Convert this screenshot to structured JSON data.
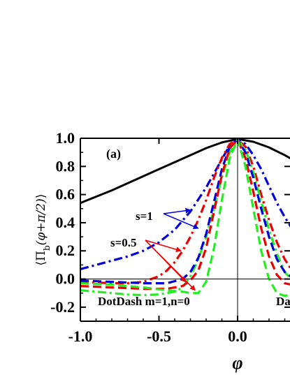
{
  "chart_data": {
    "type": "line",
    "title": "",
    "panel_label": "(a)",
    "xlabel": "φ",
    "ylabel": "⟨Π_b(φ+π/2)⟩",
    "ylabel_parts": {
      "open": "⟨",
      "pi": "Π",
      "sub": "b",
      "args": "(φ+π/2)",
      "close": "⟩"
    },
    "xlim": [
      -1.0,
      0.38
    ],
    "ylim": [
      -0.3,
      1.0
    ],
    "x_ticks": [
      "-1.0",
      "-0.5",
      "0.0"
    ],
    "y_ticks": [
      "1.0",
      "0.8",
      "0.6",
      "0.4",
      "0.2",
      "0.0",
      "-0.2"
    ],
    "grid": false,
    "annotations": {
      "s1": "s=1",
      "s05": "s=0.5",
      "dotdash": "DotDash  m=1,n=0",
      "dash": "Da"
    },
    "colors": {
      "black": "#000000",
      "blue": "#0000dd",
      "red": "#ee0000",
      "green": "#22ee22"
    },
    "series": [
      {
        "color": "black",
        "style": "solid",
        "x": [
          -1.0,
          -0.9,
          -0.8,
          -0.7,
          -0.6,
          -0.5,
          -0.4,
          -0.3,
          -0.2,
          -0.1,
          0.0,
          0.1,
          0.2,
          0.3,
          0.38
        ],
        "y": [
          0.54,
          0.585,
          0.63,
          0.68,
          0.73,
          0.78,
          0.83,
          0.88,
          0.93,
          0.97,
          0.995,
          0.975,
          0.935,
          0.88,
          0.83
        ]
      },
      {
        "color": "blue",
        "style": "dashdot",
        "x": [
          -1.0,
          -0.9,
          -0.8,
          -0.7,
          -0.6,
          -0.5,
          -0.4,
          -0.3,
          -0.2,
          -0.1,
          -0.05,
          0.0,
          0.05,
          0.1,
          0.15,
          0.2,
          0.25,
          0.3,
          0.38
        ],
        "y": [
          0.07,
          0.1,
          0.13,
          0.16,
          0.2,
          0.26,
          0.35,
          0.48,
          0.65,
          0.85,
          0.95,
          0.99,
          0.96,
          0.88,
          0.78,
          0.66,
          0.54,
          0.44,
          0.3
        ]
      },
      {
        "color": "red",
        "style": "dashdot",
        "x": [
          -1.0,
          -0.9,
          -0.8,
          -0.7,
          -0.6,
          -0.5,
          -0.45,
          -0.4,
          -0.35,
          -0.3,
          -0.25,
          -0.2,
          -0.15,
          -0.1,
          -0.05,
          0.0,
          0.05,
          0.1,
          0.15,
          0.2,
          0.25,
          0.3,
          0.38
        ],
        "y": [
          -0.02,
          -0.025,
          -0.03,
          -0.03,
          -0.02,
          0.02,
          0.06,
          0.12,
          0.2,
          0.3,
          0.42,
          0.56,
          0.72,
          0.86,
          0.96,
          0.99,
          0.94,
          0.8,
          0.6,
          0.42,
          0.26,
          0.14,
          0.0
        ]
      },
      {
        "color": "green",
        "style": "dashdot",
        "x": [
          -1.0,
          -0.9,
          -0.8,
          -0.7,
          -0.6,
          -0.5,
          -0.4,
          -0.35,
          -0.3,
          -0.25,
          -0.2,
          -0.15,
          -0.1,
          -0.05,
          0.0,
          0.05,
          0.1,
          0.15,
          0.2,
          0.25,
          0.3,
          0.38
        ],
        "y": [
          -0.08,
          -0.09,
          -0.1,
          -0.11,
          -0.115,
          -0.11,
          -0.09,
          -0.06,
          0.02,
          0.14,
          0.3,
          0.5,
          0.72,
          0.9,
          0.99,
          0.92,
          0.76,
          0.55,
          0.35,
          0.18,
          0.05,
          -0.05
        ]
      },
      {
        "color": "blue",
        "style": "dash",
        "x": [
          -1.0,
          -0.8,
          -0.6,
          -0.45,
          -0.35,
          -0.3,
          -0.25,
          -0.2,
          -0.15,
          -0.1,
          -0.05,
          0.0,
          0.05,
          0.1,
          0.15,
          0.2,
          0.25,
          0.3,
          0.38
        ],
        "y": [
          -0.01,
          -0.02,
          -0.03,
          -0.03,
          0.0,
          0.05,
          0.15,
          0.32,
          0.55,
          0.78,
          0.94,
          0.99,
          0.9,
          0.72,
          0.5,
          0.3,
          0.14,
          0.05,
          -0.02
        ]
      },
      {
        "color": "red",
        "style": "dash",
        "x": [
          -1.0,
          -0.8,
          -0.6,
          -0.45,
          -0.35,
          -0.3,
          -0.25,
          -0.2,
          -0.15,
          -0.1,
          -0.05,
          0.0,
          0.05,
          0.1,
          0.15,
          0.2,
          0.25,
          0.3,
          0.38
        ],
        "y": [
          -0.05,
          -0.06,
          -0.07,
          -0.07,
          -0.05,
          -0.01,
          0.06,
          0.22,
          0.48,
          0.74,
          0.93,
          0.99,
          0.86,
          0.62,
          0.36,
          0.16,
          0.03,
          -0.03,
          -0.05
        ]
      },
      {
        "color": "green",
        "style": "dash",
        "x": [
          -1.0,
          -0.8,
          -0.6,
          -0.45,
          -0.35,
          -0.3,
          -0.25,
          -0.2,
          -0.15,
          -0.1,
          -0.05,
          0.0,
          0.05,
          0.1,
          0.15,
          0.2,
          0.25,
          0.3,
          0.38
        ],
        "y": [
          -0.03,
          -0.04,
          -0.06,
          -0.08,
          -0.09,
          -0.1,
          -0.1,
          -0.02,
          0.22,
          0.56,
          0.86,
          0.99,
          0.8,
          0.5,
          0.2,
          0.0,
          -0.1,
          -0.12,
          -0.1
        ]
      }
    ]
  }
}
